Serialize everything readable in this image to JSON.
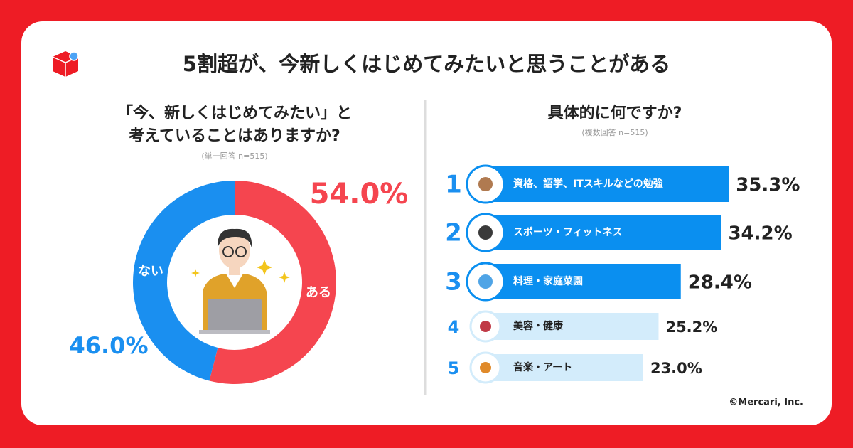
{
  "title": "5割超が、今新しくはじめてみたいと思うことがある",
  "copyright": "©Mercari, Inc.",
  "chart_data": [
    {
      "type": "pie",
      "title": [
        "「今、新しくはじめてみたい」と",
        "考えていることはありますか?"
      ],
      "subtitle": "(単一回答 n=515)",
      "categories": [
        "ある",
        "ない"
      ],
      "values": [
        54.0,
        46.0
      ],
      "value_labels": [
        "54.0%",
        "46.0%"
      ],
      "colors": [
        "#f5454f",
        "#1a8ff0"
      ]
    },
    {
      "type": "bar",
      "title": "具体的に何ですか?",
      "subtitle": "(複数回答 n=515)",
      "ranks": [
        "1",
        "2",
        "3",
        "4",
        "5"
      ],
      "categories": [
        "資格、語学、ITスキルなどの勉強",
        "スポーツ・フィットネス",
        "料理・家庭菜園",
        "美容・健康",
        "音楽・アート"
      ],
      "values": [
        35.3,
        34.2,
        28.4,
        25.2,
        23.0
      ],
      "value_labels": [
        "35.3%",
        "34.2%",
        "28.4%",
        "25.2%",
        "23.0%"
      ],
      "colors": [
        "#0a8ff0",
        "#0a8ff0",
        "#0a8ff0",
        "#d3ecfb",
        "#d3ecfb"
      ]
    }
  ]
}
